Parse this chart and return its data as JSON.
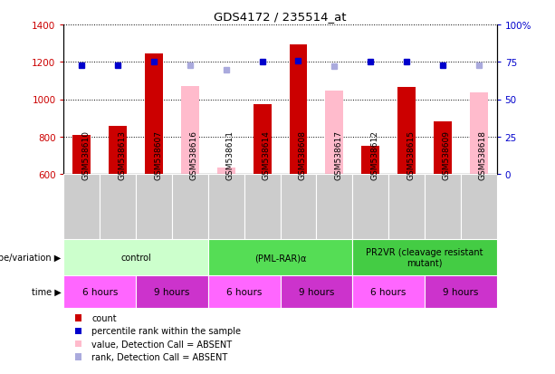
{
  "title": "GDS4172 / 235514_at",
  "samples": [
    "GSM538610",
    "GSM538613",
    "GSM538607",
    "GSM538616",
    "GSM538611",
    "GSM538614",
    "GSM538608",
    "GSM538617",
    "GSM538612",
    "GSM538615",
    "GSM538609",
    "GSM538618"
  ],
  "bar_counts": [
    810,
    857,
    1247,
    null,
    null,
    975,
    1291,
    null,
    748,
    1065,
    882,
    null
  ],
  "bar_absent_values": [
    null,
    null,
    null,
    1070,
    635,
    null,
    null,
    1045,
    null,
    null,
    null,
    1035
  ],
  "percentile_ranks_present": [
    73,
    73,
    75,
    null,
    null,
    75,
    76,
    null,
    75,
    75,
    73,
    null
  ],
  "percentile_ranks_absent": [
    null,
    null,
    null,
    73,
    70,
    null,
    null,
    72,
    null,
    null,
    null,
    73
  ],
  "ylim_left": [
    600,
    1400
  ],
  "ylim_right": [
    0,
    100
  ],
  "yticks_left": [
    600,
    800,
    1000,
    1200,
    1400
  ],
  "yticks_right": [
    0,
    25,
    50,
    75,
    100
  ],
  "ytick_right_labels": [
    "0",
    "25",
    "50",
    "75",
    "100%"
  ],
  "bar_color_count": "#cc0000",
  "bar_color_absent": "#ffbbcc",
  "dot_color_present": "#0000cc",
  "dot_color_absent": "#aaaadd",
  "genotype_groups": [
    {
      "label": "control",
      "color": "#ccffcc",
      "start": 0,
      "end": 4
    },
    {
      "label": "(PML-RAR)α",
      "color": "#55dd55",
      "start": 4,
      "end": 8
    },
    {
      "label": "PR2VR (cleavage resistant\nmutant)",
      "color": "#44cc44",
      "start": 8,
      "end": 12
    }
  ],
  "time_blocks": [
    {
      "label": "6 hours",
      "color": "#ff66ff",
      "start": 0,
      "end": 2
    },
    {
      "label": "9 hours",
      "color": "#cc33cc",
      "start": 2,
      "end": 4
    },
    {
      "label": "6 hours",
      "color": "#ff66ff",
      "start": 4,
      "end": 6
    },
    {
      "label": "9 hours",
      "color": "#cc33cc",
      "start": 6,
      "end": 8
    },
    {
      "label": "6 hours",
      "color": "#ff66ff",
      "start": 8,
      "end": 10
    },
    {
      "label": "9 hours",
      "color": "#cc33cc",
      "start": 10,
      "end": 12
    }
  ],
  "legend_items": [
    {
      "label": "count",
      "color": "#cc0000"
    },
    {
      "label": "percentile rank within the sample",
      "color": "#0000cc"
    },
    {
      "label": "value, Detection Call = ABSENT",
      "color": "#ffbbcc"
    },
    {
      "label": "rank, Detection Call = ABSENT",
      "color": "#aaaadd"
    }
  ],
  "bar_width": 0.5,
  "gray_color": "#cccccc",
  "label_arrow_genotype": "genotype/variation",
  "label_arrow_time": "time"
}
